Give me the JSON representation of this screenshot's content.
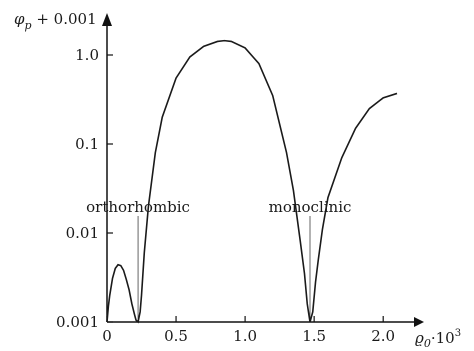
{
  "chart_data": {
    "type": "line",
    "title": "",
    "xlabel": "ϱ0·10^3",
    "ylabel": "φp + 0.001",
    "ylabel_parts": {
      "base": "φ",
      "sub": "p",
      "rest": " + 0.001"
    },
    "xlabel_parts": {
      "base": "ϱ",
      "sub": "0",
      "mid": "·10",
      "sup": "3"
    },
    "x_scale": "linear",
    "y_scale": "log",
    "xlim": [
      0,
      2.1
    ],
    "ylim": [
      0.001,
      2.0
    ],
    "grid": false,
    "x_ticks": [
      0,
      0.5,
      1.0,
      1.5,
      2.0
    ],
    "x_tick_labels": [
      "0",
      "0.5",
      "1.0",
      "1.5",
      "2.0"
    ],
    "y_ticks": [
      0.001,
      0.01,
      0.1,
      1.0
    ],
    "y_tick_labels": [
      "0.001",
      "0.01",
      "0.1",
      "1.0"
    ],
    "series": [
      {
        "x": [
          0,
          0.01,
          0.02,
          0.04,
          0.06,
          0.08,
          0.1,
          0.12,
          0.14,
          0.16,
          0.18,
          0.2,
          0.21,
          0.225,
          0.24,
          0.25,
          0.27,
          0.3,
          0.35,
          0.4,
          0.5,
          0.6,
          0.7,
          0.8,
          0.85,
          0.9,
          1.0,
          1.1,
          1.2,
          1.3,
          1.35,
          1.4,
          1.43,
          1.45,
          1.47,
          1.49,
          1.51,
          1.53,
          1.56,
          1.6,
          1.7,
          1.8,
          1.9,
          2.0,
          2.1
        ],
        "y": [
          0.001,
          0.0015,
          0.002,
          0.0031,
          0.004,
          0.0044,
          0.0043,
          0.0038,
          0.003,
          0.0023,
          0.0016,
          0.0012,
          0.00105,
          0.001,
          0.0013,
          0.002,
          0.006,
          0.02,
          0.08,
          0.2,
          0.55,
          0.95,
          1.25,
          1.42,
          1.45,
          1.42,
          1.2,
          0.8,
          0.35,
          0.08,
          0.03,
          0.008,
          0.0035,
          0.0016,
          0.001,
          0.0013,
          0.0028,
          0.005,
          0.011,
          0.025,
          0.07,
          0.15,
          0.25,
          0.33,
          0.37
        ]
      }
    ],
    "annotations": [
      {
        "text": "orthorhombic",
        "x": 0.225
      },
      {
        "text": "monoclinic",
        "x": 1.47
      }
    ]
  }
}
